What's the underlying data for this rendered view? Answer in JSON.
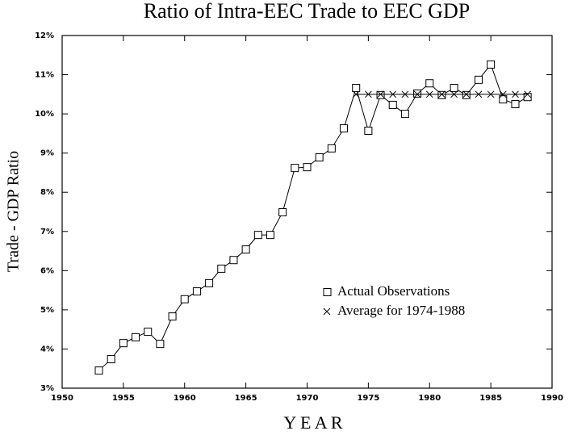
{
  "chart_data": {
    "type": "line",
    "title": "Ratio of Intra-EEC Trade to EEC GDP",
    "xlabel": "Y E A R",
    "ylabel": "Trade - GDP Ratio",
    "x": [
      1953,
      1954,
      1955,
      1956,
      1957,
      1958,
      1959,
      1960,
      1961,
      1962,
      1963,
      1964,
      1965,
      1966,
      1967,
      1968,
      1969,
      1970,
      1971,
      1972,
      1973,
      1974,
      1975,
      1976,
      1977,
      1978,
      1979,
      1980,
      1981,
      1982,
      1983,
      1984,
      1985,
      1986,
      1987,
      1988
    ],
    "series": [
      {
        "name": "Actual Observations",
        "color": "#000000",
        "marker": "square",
        "values": [
          3.45,
          3.74,
          4.15,
          4.3,
          4.44,
          4.13,
          4.83,
          5.27,
          5.47,
          5.68,
          6.05,
          6.27,
          6.54,
          6.91,
          6.91,
          7.49,
          8.62,
          8.64,
          8.89,
          9.12,
          9.63,
          10.66,
          9.57,
          10.48,
          10.23,
          10.0,
          10.52,
          10.78,
          10.48,
          10.66,
          10.48,
          10.87,
          11.26,
          10.37,
          10.25,
          10.43
        ]
      },
      {
        "name": "Average for 1974-1988",
        "color": "#000000",
        "marker": "x",
        "values": [
          null,
          null,
          null,
          null,
          null,
          null,
          null,
          null,
          null,
          null,
          null,
          null,
          null,
          null,
          null,
          null,
          null,
          null,
          null,
          null,
          null,
          10.5,
          10.5,
          10.5,
          10.5,
          10.5,
          10.5,
          10.5,
          10.5,
          10.5,
          10.5,
          10.5,
          10.5,
          10.5,
          10.5,
          10.5
        ]
      }
    ],
    "xlim": [
      1950,
      1990
    ],
    "xticks": [
      1950,
      1955,
      1960,
      1965,
      1970,
      1975,
      1980,
      1985,
      1990
    ],
    "ylim": [
      3,
      12
    ],
    "yticks": [
      {
        "value": 3,
        "label": "3%"
      },
      {
        "value": 4,
        "label": "4%"
      },
      {
        "value": 5,
        "label": "5%"
      },
      {
        "value": 6,
        "label": "6%"
      },
      {
        "value": 7,
        "label": "7%"
      },
      {
        "value": 8,
        "label": "8%"
      },
      {
        "value": 9,
        "label": "9%"
      },
      {
        "value": 10,
        "label": "10%"
      },
      {
        "value": 11,
        "label": "11%"
      },
      {
        "value": 12,
        "label": "12%"
      }
    ],
    "grid": false
  }
}
